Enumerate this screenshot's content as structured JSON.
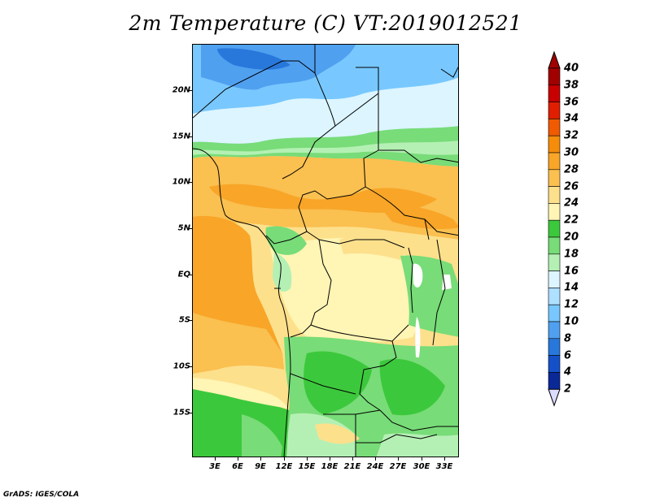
{
  "title": "2m Temperature (C) VT:2019012521",
  "credit": "GrADS: IGES/COLA",
  "lat_labels": [
    "20N",
    "15N",
    "10N",
    "5N",
    "EQ",
    "5S",
    "10S",
    "15S"
  ],
  "lon_labels": [
    "3E",
    "6E",
    "9E",
    "12E",
    "15E",
    "18E",
    "21E",
    "24E",
    "27E",
    "30E",
    "33E"
  ],
  "colorbar": {
    "levels": [
      "40",
      "38",
      "36",
      "34",
      "32",
      "30",
      "28",
      "26",
      "24",
      "22",
      "20",
      "18",
      "16",
      "14",
      "12",
      "10",
      "8",
      "6",
      "4",
      "2"
    ],
    "colors": [
      "#a00000",
      "#c80000",
      "#e01e00",
      "#f05a00",
      "#f58c0a",
      "#f8a528",
      "#fac050",
      "#fde08c",
      "#fff5b4",
      "#3cc83c",
      "#78dc78",
      "#b4f0b4",
      "#dcf5ff",
      "#aee0ff",
      "#78c8ff",
      "#50a0f0",
      "#2878dc",
      "#1450c8",
      "#0a2896",
      "#0a0a64"
    ],
    "top_arrow_color": "#a00000",
    "bottom_arrow_color": "#dcdcff"
  },
  "map_colors": {
    "very_cold": "#2878dc",
    "cold": "#50a0f0",
    "cool": "#78c8ff",
    "mild": "#aee0ff",
    "pale": "#dcf5ff",
    "green_light": "#b4f0b4",
    "green": "#78dc78",
    "green_dark": "#3cc83c",
    "yellow_pale": "#fff5b4",
    "yellow": "#fde08c",
    "orange_light": "#fac050",
    "orange": "#f8a528",
    "lake": "#ffffff"
  }
}
